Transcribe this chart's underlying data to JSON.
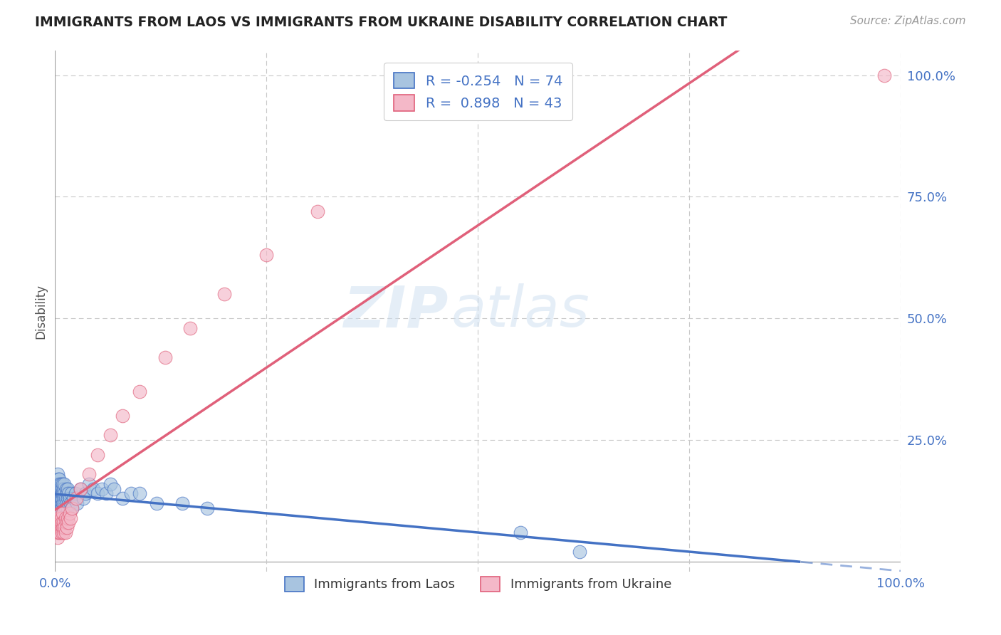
{
  "title": "IMMIGRANTS FROM LAOS VS IMMIGRANTS FROM UKRAINE DISABILITY CORRELATION CHART",
  "source": "Source: ZipAtlas.com",
  "ylabel": "Disability",
  "xlim": [
    0.0,
    1.0
  ],
  "ylim": [
    -0.02,
    1.05
  ],
  "x_ticks": [
    0.0,
    0.25,
    0.5,
    0.75,
    1.0
  ],
  "x_tick_labels": [
    "0.0%",
    "",
    "",
    "",
    "100.0%"
  ],
  "y_ticks": [
    0.0,
    0.25,
    0.5,
    0.75,
    1.0
  ],
  "y_tick_labels": [
    "",
    "25.0%",
    "50.0%",
    "75.0%",
    "100.0%"
  ],
  "legend_labels": [
    "Immigrants from Laos",
    "Immigrants from Ukraine"
  ],
  "laos_color": "#a8c4e0",
  "ukraine_color": "#f4b8c8",
  "laos_line_color": "#4472c4",
  "ukraine_line_color": "#e0607a",
  "R_laos": -0.254,
  "N_laos": 74,
  "R_ukraine": 0.898,
  "N_ukraine": 43,
  "laos_scatter_x": [
    0.001,
    0.002,
    0.002,
    0.003,
    0.003,
    0.003,
    0.004,
    0.004,
    0.004,
    0.004,
    0.005,
    0.005,
    0.005,
    0.005,
    0.005,
    0.006,
    0.006,
    0.006,
    0.006,
    0.006,
    0.007,
    0.007,
    0.007,
    0.007,
    0.007,
    0.008,
    0.008,
    0.008,
    0.008,
    0.009,
    0.009,
    0.009,
    0.01,
    0.01,
    0.01,
    0.011,
    0.011,
    0.011,
    0.012,
    0.012,
    0.013,
    0.013,
    0.014,
    0.014,
    0.015,
    0.015,
    0.015,
    0.016,
    0.016,
    0.017,
    0.018,
    0.019,
    0.02,
    0.022,
    0.024,
    0.026,
    0.03,
    0.033,
    0.036,
    0.04,
    0.045,
    0.05,
    0.055,
    0.06,
    0.065,
    0.07,
    0.08,
    0.09,
    0.1,
    0.12,
    0.15,
    0.18,
    0.55,
    0.62
  ],
  "laos_scatter_y": [
    0.14,
    0.16,
    0.13,
    0.18,
    0.12,
    0.15,
    0.17,
    0.11,
    0.14,
    0.16,
    0.13,
    0.15,
    0.12,
    0.17,
    0.1,
    0.14,
    0.16,
    0.13,
    0.11,
    0.15,
    0.14,
    0.12,
    0.16,
    0.11,
    0.13,
    0.15,
    0.13,
    0.11,
    0.14,
    0.16,
    0.12,
    0.14,
    0.13,
    0.11,
    0.15,
    0.14,
    0.12,
    0.16,
    0.13,
    0.11,
    0.15,
    0.12,
    0.14,
    0.1,
    0.13,
    0.11,
    0.15,
    0.12,
    0.14,
    0.13,
    0.12,
    0.14,
    0.11,
    0.13,
    0.14,
    0.12,
    0.15,
    0.13,
    0.14,
    0.16,
    0.15,
    0.14,
    0.15,
    0.14,
    0.16,
    0.15,
    0.13,
    0.14,
    0.14,
    0.12,
    0.12,
    0.11,
    0.06,
    0.02
  ],
  "ukraine_scatter_x": [
    0.001,
    0.002,
    0.002,
    0.003,
    0.003,
    0.004,
    0.004,
    0.005,
    0.005,
    0.006,
    0.006,
    0.006,
    0.007,
    0.007,
    0.008,
    0.008,
    0.009,
    0.009,
    0.01,
    0.01,
    0.011,
    0.012,
    0.012,
    0.013,
    0.014,
    0.015,
    0.016,
    0.017,
    0.018,
    0.02,
    0.025,
    0.03,
    0.04,
    0.05,
    0.065,
    0.08,
    0.1,
    0.13,
    0.16,
    0.2,
    0.25,
    0.31,
    0.98
  ],
  "ukraine_scatter_y": [
    0.06,
    0.08,
    0.07,
    0.09,
    0.05,
    0.08,
    0.06,
    0.09,
    0.07,
    0.08,
    0.06,
    0.1,
    0.07,
    0.09,
    0.06,
    0.08,
    0.07,
    0.1,
    0.06,
    0.08,
    0.07,
    0.09,
    0.06,
    0.08,
    0.07,
    0.09,
    0.08,
    0.1,
    0.09,
    0.11,
    0.13,
    0.15,
    0.18,
    0.22,
    0.26,
    0.3,
    0.35,
    0.42,
    0.48,
    0.55,
    0.63,
    0.72,
    1.0
  ],
  "watermark_zip": "ZIP",
  "watermark_atlas": "atlas",
  "background_color": "#ffffff",
  "grid_color": "#c8c8c8",
  "tick_color": "#4472c4"
}
